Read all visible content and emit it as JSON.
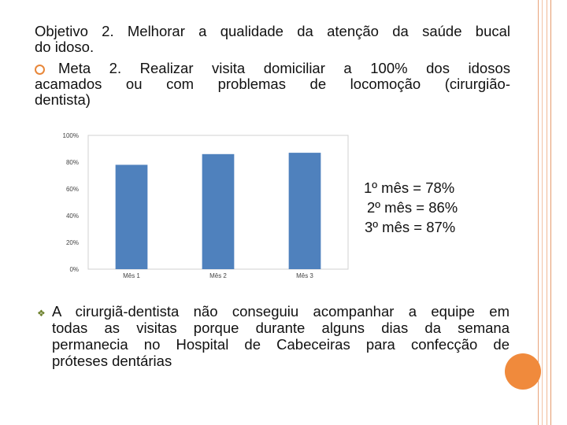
{
  "objetivo": {
    "label": "Objetivo 2",
    "line1_rest": ".  Melhorar a qualidade da atenção da saúde bucal",
    "line2": "do idoso."
  },
  "meta": {
    "line1": "Meta 2. Realizar visita domiciliar a 100% dos idosos",
    "line2": "acamados ou com problemas de locomoção (cirurgião-",
    "line3": "dentista)"
  },
  "results": [
    "1º mês = 78%",
    "2º mês = 86%",
    "3º mês = 87%"
  ],
  "note": {
    "line1": "A cirurgiã-dentista não conseguiu acompanhar a equipe em",
    "line2": "todas as visitas porque durante alguns dias da semana",
    "line3": "permanecia no Hospital de Cabeceiras para confecção de",
    "line4": "próteses dentárias"
  },
  "chart_data": {
    "type": "bar",
    "categories": [
      "Mês 1",
      "Mês 2",
      "Mês 3"
    ],
    "values": [
      78,
      86,
      87
    ],
    "yticks": [
      "0%",
      "20%",
      "40%",
      "60%",
      "80%",
      "100%"
    ],
    "ylim": [
      0,
      100
    ],
    "bar_color": "#4f81bd",
    "grid": false,
    "legend": "none"
  },
  "colors": {
    "accent_orange": "#f08a3c",
    "bullet_circle": "#e8873a",
    "bullet_diamond": "#6b7f2a"
  }
}
